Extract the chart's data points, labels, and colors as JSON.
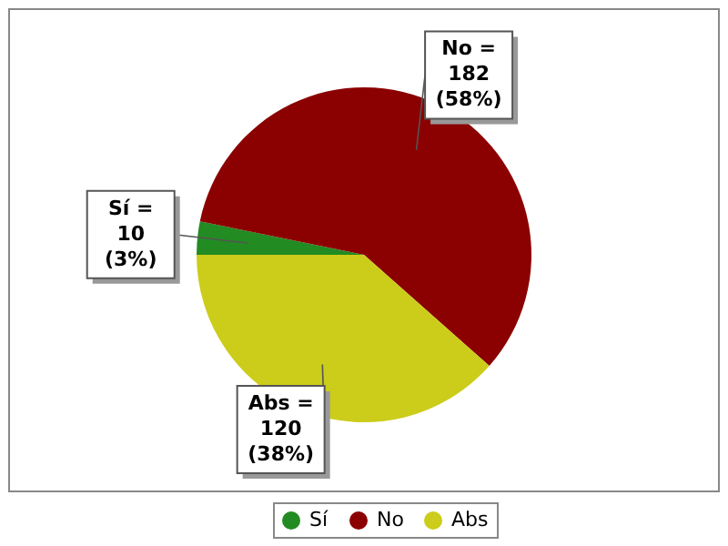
{
  "chart_data": {
    "type": "pie",
    "categories": [
      "Sí",
      "No",
      "Abs"
    ],
    "values": [
      10,
      182,
      120
    ],
    "colors": [
      "#228b22",
      "#8b0000",
      "#cccc1a"
    ],
    "value_labels": [
      "Sí =\n10\n(3%)",
      "No =\n182\n(58%)",
      "Abs =\n120\n(38%)"
    ],
    "legend": "bottom"
  }
}
